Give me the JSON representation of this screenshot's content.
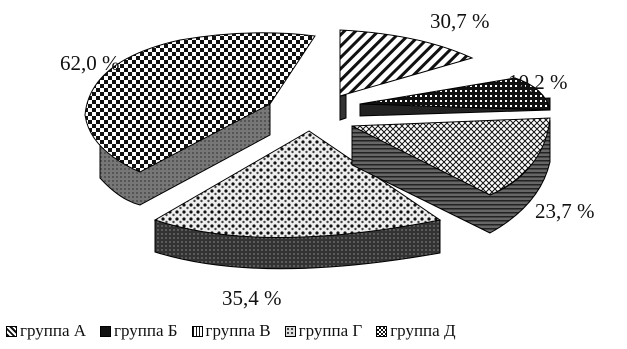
{
  "chart_data": {
    "type": "pie",
    "title": "",
    "slices": [
      {
        "name": "группа А",
        "value": 30.7,
        "label": "30,7 %",
        "pattern": "diag"
      },
      {
        "name": "группа Б",
        "value": 10.2,
        "label": "10,2 %",
        "pattern": "dense"
      },
      {
        "name": "группа В",
        "value": 23.7,
        "label": "23,7 %",
        "pattern": "cross"
      },
      {
        "name": "группа Г",
        "value": 35.4,
        "label": "35,4 %",
        "pattern": "dots"
      },
      {
        "name": "группа Д",
        "value": 62.0,
        "label": "62,0 %",
        "pattern": "checker"
      }
    ],
    "legend_position": "bottom",
    "style": "3d-exploded"
  }
}
